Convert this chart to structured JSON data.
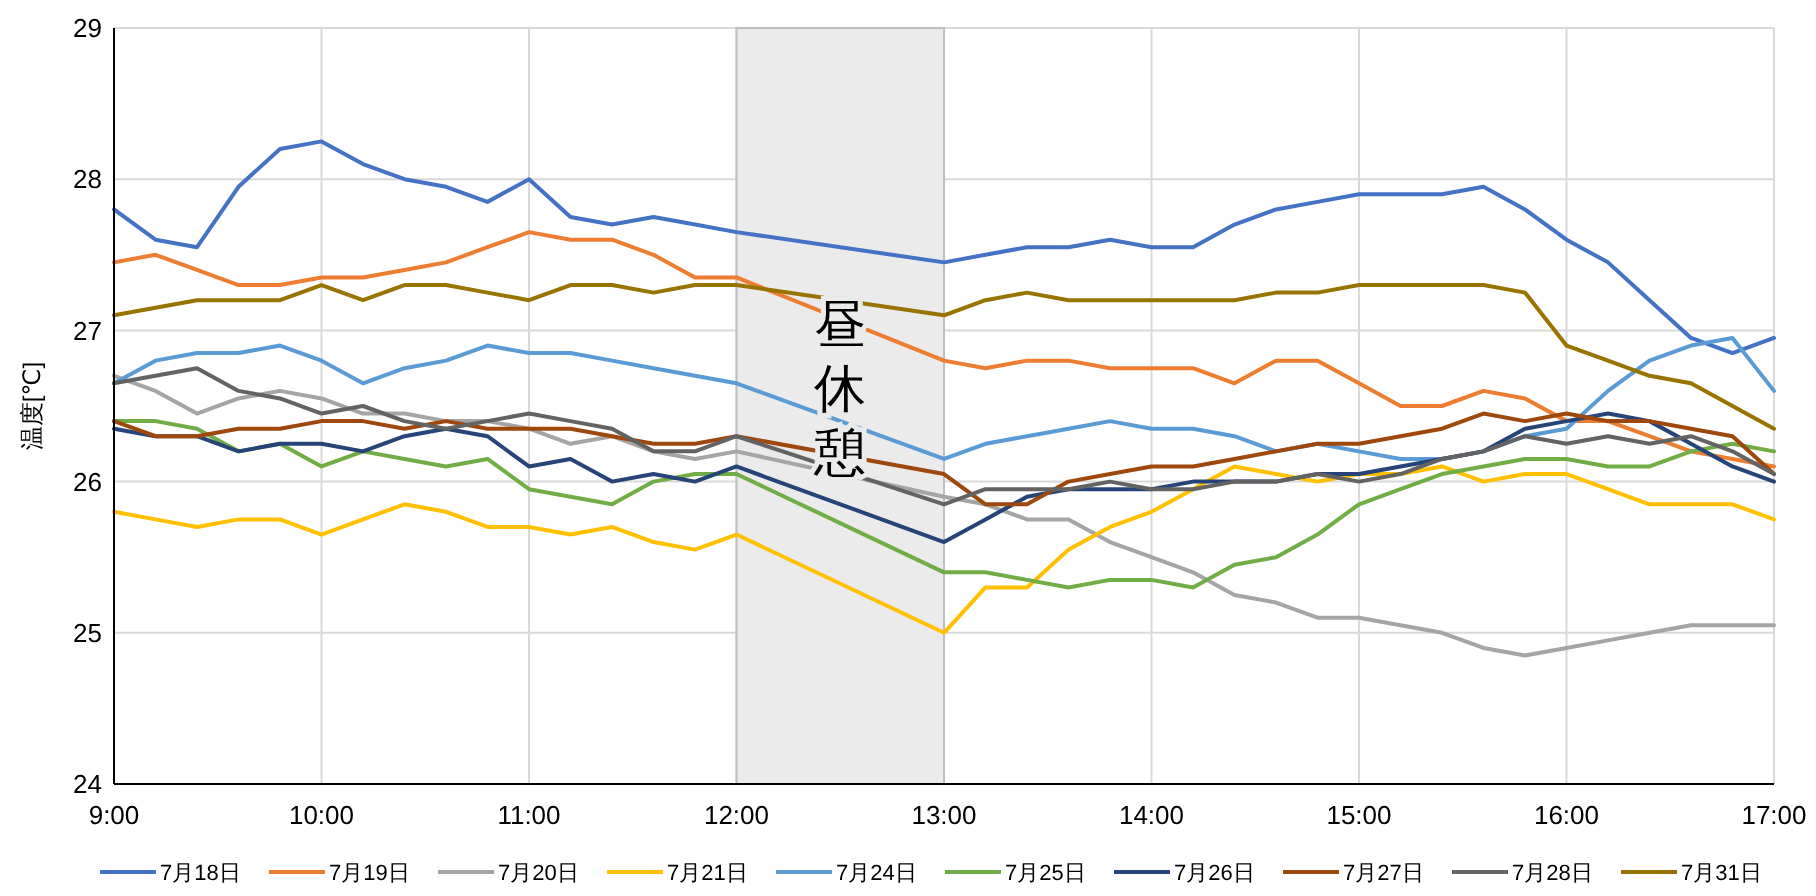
{
  "chart_data": {
    "type": "line",
    "ylabel": "温度[℃]",
    "x": [
      9,
      9.2,
      9.4,
      9.6,
      9.8,
      10,
      10.2,
      10.4,
      10.6,
      10.8,
      11,
      11.2,
      11.4,
      11.6,
      11.8,
      12,
      13,
      13.2,
      13.4,
      13.6,
      13.8,
      14,
      14.2,
      14.4,
      14.6,
      14.8,
      15,
      15.2,
      15.4,
      15.6,
      15.8,
      16,
      16.2,
      16.4,
      16.6,
      16.8,
      17
    ],
    "xlim": [
      9,
      17
    ],
    "xticks": [
      {
        "value": 9,
        "label": "9:00"
      },
      {
        "value": 10,
        "label": "10:00"
      },
      {
        "value": 11,
        "label": "11:00"
      },
      {
        "value": 12,
        "label": "12:00"
      },
      {
        "value": 13,
        "label": "13:00"
      },
      {
        "value": 14,
        "label": "14:00"
      },
      {
        "value": 15,
        "label": "15:00"
      },
      {
        "value": 16,
        "label": "16:00"
      },
      {
        "value": 17,
        "label": "17:00"
      }
    ],
    "ylim": [
      24,
      29
    ],
    "yticks": [
      24,
      25,
      26,
      27,
      28,
      29
    ],
    "grid": true,
    "legend": "bottom",
    "line_style": "solid",
    "marker": "none",
    "bands": [
      {
        "axis": "x",
        "from": 12,
        "to": 13,
        "label": "昼休憩",
        "color": "#ebebeb"
      }
    ],
    "series": [
      {
        "name": "7月18日",
        "color": "#4472c4",
        "values": [
          27.8,
          27.6,
          27.55,
          27.95,
          28.2,
          28.25,
          28.1,
          28.0,
          27.95,
          27.85,
          28.0,
          27.75,
          27.7,
          27.75,
          27.7,
          27.65,
          27.45,
          27.5,
          27.55,
          27.55,
          27.6,
          27.55,
          27.55,
          27.7,
          27.8,
          27.85,
          27.9,
          27.9,
          27.9,
          27.95,
          27.8,
          27.6,
          27.45,
          27.2,
          26.95,
          26.85,
          26.95
        ]
      },
      {
        "name": "7月19日",
        "color": "#ed7d31",
        "values": [
          27.45,
          27.5,
          27.4,
          27.3,
          27.3,
          27.35,
          27.35,
          27.4,
          27.45,
          27.55,
          27.65,
          27.6,
          27.6,
          27.5,
          27.35,
          27.35,
          26.8,
          26.75,
          26.8,
          26.8,
          26.75,
          26.75,
          26.75,
          26.65,
          26.8,
          26.8,
          26.65,
          26.5,
          26.5,
          26.6,
          26.55,
          26.4,
          26.4,
          26.3,
          26.2,
          26.15,
          26.1
        ]
      },
      {
        "name": "7月20日",
        "color": "#a5a5a5",
        "values": [
          26.7,
          26.6,
          26.45,
          26.55,
          26.6,
          26.55,
          26.45,
          26.45,
          26.4,
          26.4,
          26.35,
          26.25,
          26.3,
          26.2,
          26.15,
          26.2,
          25.9,
          25.85,
          25.75,
          25.75,
          25.6,
          25.5,
          25.4,
          25.25,
          25.2,
          25.1,
          25.1,
          25.05,
          25.0,
          24.9,
          24.85,
          24.9,
          24.95,
          25.0,
          25.05,
          25.05,
          25.05
        ]
      },
      {
        "name": "7月21日",
        "color": "#ffc000",
        "values": [
          25.8,
          25.75,
          25.7,
          25.75,
          25.75,
          25.65,
          25.75,
          25.85,
          25.8,
          25.7,
          25.7,
          25.65,
          25.7,
          25.6,
          25.55,
          25.65,
          25.0,
          25.3,
          25.3,
          25.55,
          25.7,
          25.8,
          25.95,
          26.1,
          26.05,
          26.0,
          26.05,
          26.05,
          26.1,
          26.0,
          26.05,
          26.05,
          25.95,
          25.85,
          25.85,
          25.85,
          25.75
        ]
      },
      {
        "name": "7月24日",
        "color": "#5b9bd5",
        "values": [
          26.65,
          26.8,
          26.85,
          26.85,
          26.9,
          26.8,
          26.65,
          26.75,
          26.8,
          26.9,
          26.85,
          26.85,
          26.8,
          26.75,
          26.7,
          26.65,
          26.15,
          26.25,
          26.3,
          26.35,
          26.4,
          26.35,
          26.35,
          26.3,
          26.2,
          26.25,
          26.2,
          26.15,
          26.15,
          26.2,
          26.3,
          26.35,
          26.6,
          26.8,
          26.9,
          26.95,
          26.6
        ]
      },
      {
        "name": "7月25日",
        "color": "#70ad47",
        "values": [
          26.4,
          26.4,
          26.35,
          26.2,
          26.25,
          26.1,
          26.2,
          26.15,
          26.1,
          26.15,
          25.95,
          25.9,
          25.85,
          26.0,
          26.05,
          26.05,
          25.4,
          25.4,
          25.35,
          25.3,
          25.35,
          25.35,
          25.3,
          25.45,
          25.5,
          25.65,
          25.85,
          25.95,
          26.05,
          26.1,
          26.15,
          26.15,
          26.1,
          26.1,
          26.2,
          26.25,
          26.2
        ]
      },
      {
        "name": "7月26日",
        "color": "#264478",
        "values": [
          26.35,
          26.3,
          26.3,
          26.2,
          26.25,
          26.25,
          26.2,
          26.3,
          26.35,
          26.3,
          26.1,
          26.15,
          26.0,
          26.05,
          26.0,
          26.1,
          25.6,
          25.75,
          25.9,
          25.95,
          25.95,
          25.95,
          26.0,
          26.0,
          26.0,
          26.05,
          26.05,
          26.1,
          26.15,
          26.2,
          26.35,
          26.4,
          26.45,
          26.4,
          26.25,
          26.1,
          26.0
        ]
      },
      {
        "name": "7月27日",
        "color": "#9e480e",
        "values": [
          26.4,
          26.3,
          26.3,
          26.35,
          26.35,
          26.4,
          26.4,
          26.35,
          26.4,
          26.35,
          26.35,
          26.35,
          26.3,
          26.25,
          26.25,
          26.3,
          26.05,
          25.85,
          25.85,
          26.0,
          26.05,
          26.1,
          26.1,
          26.15,
          26.2,
          26.25,
          26.25,
          26.3,
          26.35,
          26.45,
          26.4,
          26.45,
          26.4,
          26.4,
          26.35,
          26.3,
          26.05
        ]
      },
      {
        "name": "7月28日",
        "color": "#636363",
        "values": [
          26.65,
          26.7,
          26.75,
          26.6,
          26.55,
          26.45,
          26.5,
          26.4,
          26.35,
          26.4,
          26.45,
          26.4,
          26.35,
          26.2,
          26.2,
          26.3,
          25.85,
          25.95,
          25.95,
          25.95,
          26.0,
          25.95,
          25.95,
          26.0,
          26.0,
          26.05,
          26.0,
          26.05,
          26.15,
          26.2,
          26.3,
          26.25,
          26.3,
          26.25,
          26.3,
          26.2,
          26.05
        ]
      },
      {
        "name": "7月31日",
        "color": "#997300",
        "values": [
          27.1,
          27.15,
          27.2,
          27.2,
          27.2,
          27.3,
          27.2,
          27.3,
          27.3,
          27.25,
          27.2,
          27.3,
          27.3,
          27.25,
          27.3,
          27.3,
          27.1,
          27.2,
          27.25,
          27.2,
          27.2,
          27.2,
          27.2,
          27.2,
          27.25,
          27.25,
          27.3,
          27.3,
          27.3,
          27.3,
          27.25,
          26.9,
          26.8,
          26.7,
          26.65,
          26.5,
          26.35
        ]
      }
    ]
  }
}
